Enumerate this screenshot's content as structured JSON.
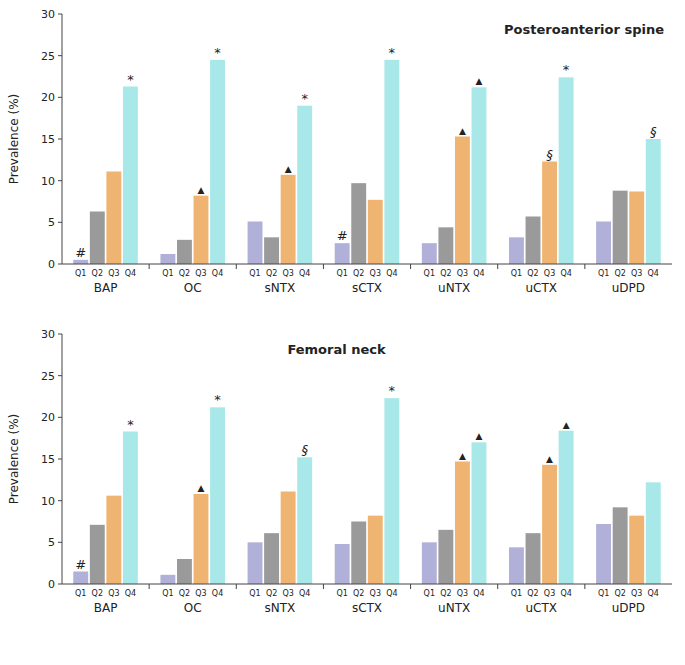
{
  "chart_data": [
    {
      "type": "bar",
      "title": "Posteroanterior spine",
      "ylabel": "Prevalence (%)",
      "categories": [
        "BAP",
        "OC",
        "sNTX",
        "sCTX",
        "uNTX",
        "uCTX",
        "uDPD"
      ],
      "series": [
        {
          "name": "Q1",
          "color": "#b0b0d8",
          "values": [
            0.5,
            1.2,
            5.1,
            2.5,
            2.5,
            3.2,
            5.1
          ]
        },
        {
          "name": "Q2",
          "color": "#9a9a9a",
          "values": [
            6.3,
            2.9,
            3.2,
            9.7,
            4.4,
            5.7,
            8.8
          ]
        },
        {
          "name": "Q3",
          "color": "#f0b472",
          "values": [
            11.1,
            8.2,
            10.7,
            7.7,
            15.3,
            12.3,
            8.7
          ]
        },
        {
          "name": "Q4",
          "color": "#a8e8e8",
          "values": [
            21.3,
            24.5,
            19.0,
            24.5,
            21.2,
            22.4,
            15.0
          ]
        }
      ],
      "annotations": [
        {
          "category": "BAP",
          "series": "Q1",
          "text": "#"
        },
        {
          "category": "BAP",
          "series": "Q4",
          "text": "*"
        },
        {
          "category": "OC",
          "series": "Q3",
          "text": "▲"
        },
        {
          "category": "OC",
          "series": "Q4",
          "text": "*"
        },
        {
          "category": "sNTX",
          "series": "Q3",
          "text": "▲"
        },
        {
          "category": "sNTX",
          "series": "Q4",
          "text": "*"
        },
        {
          "category": "sCTX",
          "series": "Q1",
          "text": "#"
        },
        {
          "category": "sCTX",
          "series": "Q4",
          "text": "*"
        },
        {
          "category": "uNTX",
          "series": "Q3",
          "text": "▲"
        },
        {
          "category": "uNTX",
          "series": "Q4",
          "text": "▲"
        },
        {
          "category": "uCTX",
          "series": "Q3",
          "text": "§"
        },
        {
          "category": "uCTX",
          "series": "Q4",
          "text": "*"
        },
        {
          "category": "uDPD",
          "series": "Q4",
          "text": "§"
        }
      ],
      "ylim": [
        0,
        30
      ],
      "yticks": [
        0,
        5,
        10,
        15,
        20,
        25,
        30
      ],
      "grid": false
    },
    {
      "type": "bar",
      "title": "Femoral neck",
      "ylabel": "Prevalence (%)",
      "categories": [
        "BAP",
        "OC",
        "sNTX",
        "sCTX",
        "uNTX",
        "uCTX",
        "uDPD"
      ],
      "series": [
        {
          "name": "Q1",
          "color": "#b0b0d8",
          "values": [
            1.5,
            1.1,
            5.0,
            4.8,
            5.0,
            4.4,
            7.2
          ]
        },
        {
          "name": "Q2",
          "color": "#9a9a9a",
          "values": [
            7.1,
            3.0,
            6.1,
            7.5,
            6.5,
            6.1,
            9.2
          ]
        },
        {
          "name": "Q3",
          "color": "#f0b472",
          "values": [
            10.6,
            10.8,
            11.1,
            8.2,
            14.7,
            14.3,
            8.2
          ]
        },
        {
          "name": "Q4",
          "color": "#a8e8e8",
          "values": [
            18.3,
            21.2,
            15.2,
            22.3,
            17.0,
            18.4,
            12.2
          ]
        }
      ],
      "annotations": [
        {
          "category": "BAP",
          "series": "Q1",
          "text": "#"
        },
        {
          "category": "BAP",
          "series": "Q4",
          "text": "*"
        },
        {
          "category": "OC",
          "series": "Q3",
          "text": "▲"
        },
        {
          "category": "OC",
          "series": "Q4",
          "text": "*"
        },
        {
          "category": "sNTX",
          "series": "Q4",
          "text": "§"
        },
        {
          "category": "sCTX",
          "series": "Q4",
          "text": "*"
        },
        {
          "category": "uNTX",
          "series": "Q3",
          "text": "▲"
        },
        {
          "category": "uNTX",
          "series": "Q4",
          "text": "▲"
        },
        {
          "category": "uCTX",
          "series": "Q3",
          "text": "▲"
        },
        {
          "category": "uCTX",
          "series": "Q4",
          "text": "▲"
        }
      ],
      "ylim": [
        0,
        30
      ],
      "yticks": [
        0,
        5,
        10,
        15,
        20,
        25,
        30
      ],
      "grid": false
    }
  ]
}
